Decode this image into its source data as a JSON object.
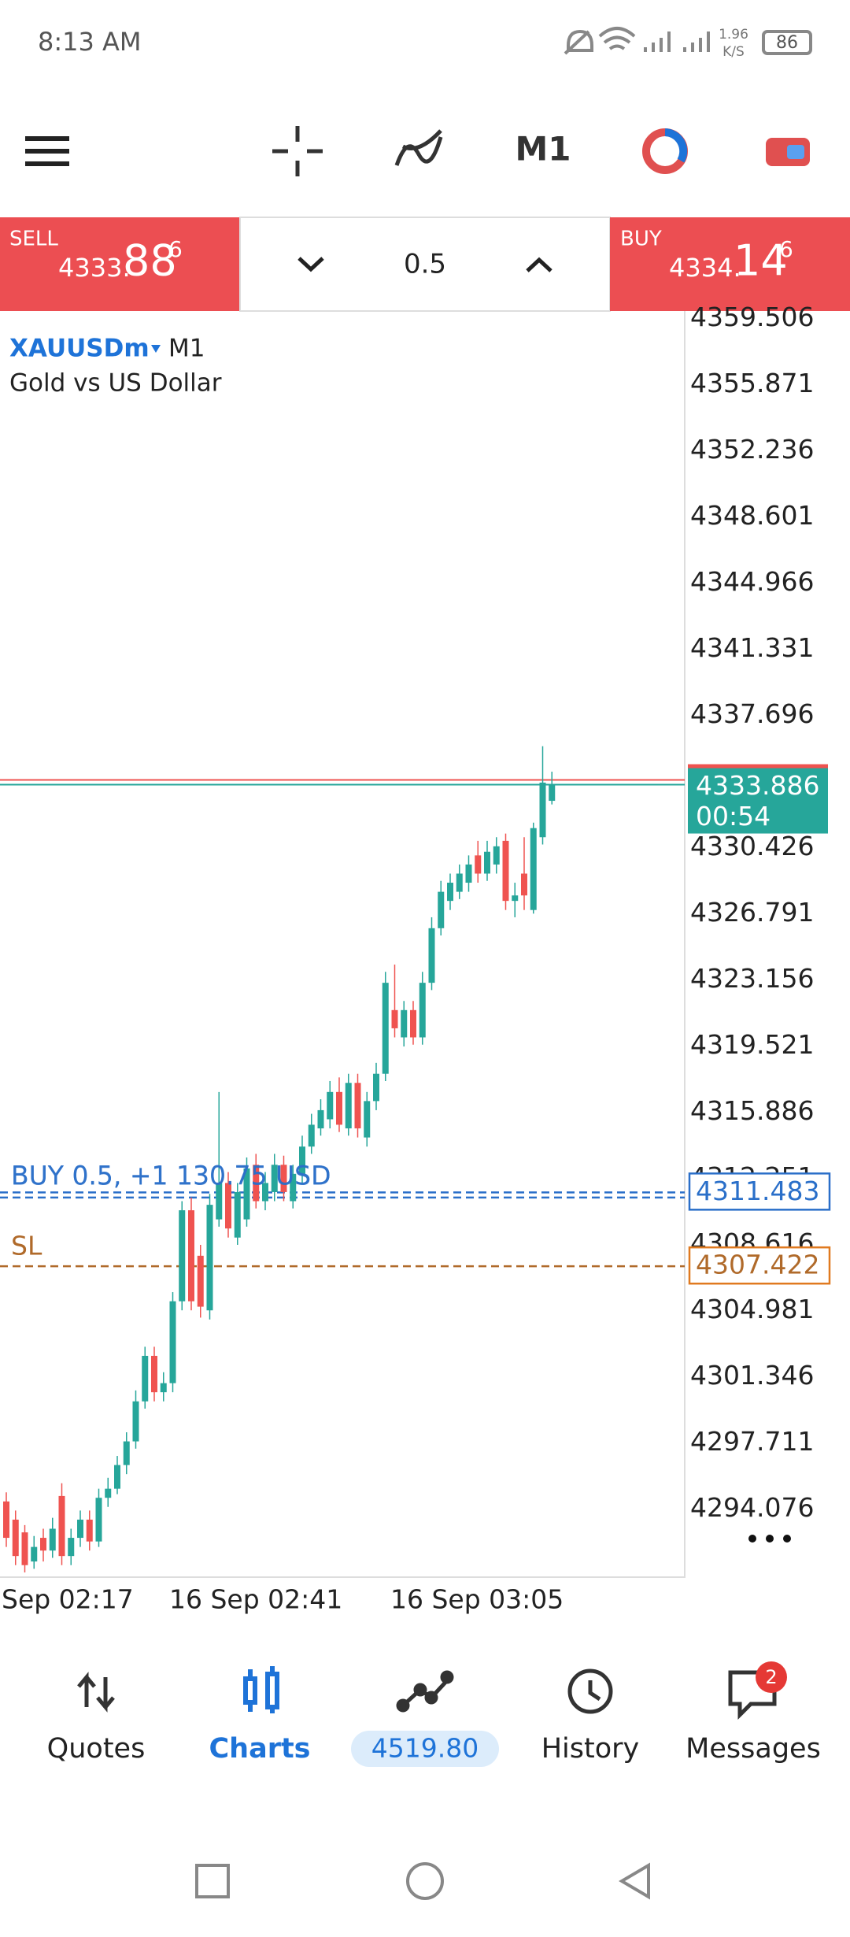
{
  "status_bar": {
    "time": "8:13 AM",
    "net_speed": "1.96",
    "net_unit": "K/S",
    "battery": "86"
  },
  "toolbar": {
    "timeframe": "M1"
  },
  "trade_panel": {
    "sell": {
      "label": "SELL",
      "price_main": "4333.",
      "price_big": "88",
      "price_sup": "6"
    },
    "volume": "0.5",
    "buy": {
      "label": "BUY",
      "price_main": "4334.",
      "price_big": "14",
      "price_sup": "6"
    }
  },
  "chart_data": {
    "type": "candlestick",
    "symbol": "XAUUSDm",
    "timeframe": "M1",
    "description": "Gold vs US Dollar",
    "ylim": [
      4290.339,
      4359.914
    ],
    "yticks": [
      4359.506,
      4355.871,
      4352.236,
      4348.601,
      4344.966,
      4341.331,
      4337.696,
      4330.426,
      4326.791,
      4323.156,
      4319.521,
      4315.886,
      4312.251,
      4308.616,
      4304.981,
      4301.346,
      4297.711,
      4294.076
    ],
    "x_labels": [
      "Sep 02:17",
      "16 Sep 02:41",
      "16 Sep 03:05"
    ],
    "up_color": "#26a69a",
    "down_color": "#ef5350",
    "candles": [
      [
        4294.5,
        4295.0,
        4292.0,
        4292.5
      ],
      [
        4293.5,
        4294.0,
        4291.0,
        4291.5
      ],
      [
        4292.8,
        4293.2,
        4290.6,
        4291.0
      ],
      [
        4291.2,
        4292.6,
        4290.8,
        4292.0
      ],
      [
        4292.5,
        4293.0,
        4291.2,
        4291.8
      ],
      [
        4291.8,
        4293.6,
        4291.4,
        4293.0
      ],
      [
        4294.8,
        4295.5,
        4291.0,
        4291.5
      ],
      [
        4291.5,
        4293.0,
        4291.0,
        4292.5
      ],
      [
        4292.5,
        4294.0,
        4292.0,
        4293.5
      ],
      [
        4293.5,
        4294.0,
        4291.8,
        4292.3
      ],
      [
        4292.3,
        4295.2,
        4292.0,
        4294.7
      ],
      [
        4294.7,
        4295.8,
        4294.2,
        4295.2
      ],
      [
        4295.2,
        4297.0,
        4294.9,
        4296.5
      ],
      [
        4296.5,
        4298.3,
        4296.0,
        4297.8
      ],
      [
        4297.8,
        4300.6,
        4297.4,
        4300.0
      ],
      [
        4300.0,
        4303.0,
        4299.6,
        4302.5
      ],
      [
        4302.5,
        4303.0,
        4300.0,
        4300.5
      ],
      [
        4300.5,
        4301.6,
        4300.0,
        4301.0
      ],
      [
        4301.0,
        4306.0,
        4300.5,
        4305.5
      ],
      [
        4305.5,
        4311.0,
        4305.0,
        4310.5
      ],
      [
        4310.5,
        4311.2,
        4305.0,
        4305.5
      ],
      [
        4308.0,
        4308.6,
        4304.6,
        4305.2
      ],
      [
        4305.0,
        4311.4,
        4304.5,
        4310.8
      ],
      [
        4310.0,
        4317.0,
        4309.6,
        4312.0
      ],
      [
        4312.0,
        4312.6,
        4309.0,
        4309.5
      ],
      [
        4309.0,
        4312.0,
        4308.6,
        4311.5
      ],
      [
        4310.0,
        4313.4,
        4309.6,
        4312.8
      ],
      [
        4313.0,
        4313.6,
        4310.6,
        4311.0
      ],
      [
        4311.0,
        4312.6,
        4310.5,
        4312.0
      ],
      [
        4311.5,
        4313.6,
        4311.0,
        4313.0
      ],
      [
        4313.0,
        4313.5,
        4311.0,
        4311.5
      ],
      [
        4311.0,
        4313.0,
        4310.6,
        4312.5
      ],
      [
        4312.5,
        4314.6,
        4312.0,
        4314.0
      ],
      [
        4314.0,
        4315.8,
        4313.6,
        4315.2
      ],
      [
        4315.0,
        4316.6,
        4314.6,
        4316.0
      ],
      [
        4315.5,
        4317.6,
        4315.0,
        4317.0
      ],
      [
        4317.0,
        4317.8,
        4314.8,
        4315.2
      ],
      [
        4315.0,
        4318.0,
        4314.6,
        4317.5
      ],
      [
        4317.5,
        4318.0,
        4314.5,
        4315.0
      ],
      [
        4314.5,
        4317.0,
        4314.0,
        4316.5
      ],
      [
        4316.5,
        4318.6,
        4316.0,
        4318.0
      ],
      [
        4318.0,
        4323.6,
        4317.6,
        4323.0
      ],
      [
        4321.5,
        4324.0,
        4320.0,
        4320.5
      ],
      [
        4320.0,
        4322.0,
        4319.5,
        4321.5
      ],
      [
        4321.5,
        4322.0,
        4319.6,
        4320.0
      ],
      [
        4320.0,
        4323.6,
        4319.6,
        4323.0
      ],
      [
        4323.0,
        4326.6,
        4322.6,
        4326.0
      ],
      [
        4326.0,
        4328.6,
        4325.6,
        4328.0
      ],
      [
        4327.5,
        4329.0,
        4327.0,
        4328.5
      ],
      [
        4328.0,
        4329.5,
        4327.6,
        4329.0
      ],
      [
        4328.5,
        4330.0,
        4328.0,
        4329.5
      ],
      [
        4330.0,
        4330.8,
        4328.5,
        4329.0
      ],
      [
        4329.0,
        4330.8,
        4328.6,
        4330.2
      ],
      [
        4329.5,
        4331.0,
        4329.0,
        4330.5
      ],
      [
        4330.8,
        4331.2,
        4327.0,
        4327.5
      ],
      [
        4327.5,
        4328.5,
        4326.6,
        4327.8
      ],
      [
        4329.0,
        4331.0,
        4327.0,
        4327.8
      ],
      [
        4327.0,
        4331.8,
        4326.8,
        4331.5
      ],
      [
        4331.0,
        4336.0,
        4330.6,
        4334.0
      ],
      [
        4333.0,
        4334.6,
        4332.8,
        4333.886
      ]
    ],
    "bid": {
      "value": 4333.886,
      "timer": "00:54"
    },
    "ask": 4334.146,
    "orders": [
      {
        "label": "BUY 0.5, +1 130.75 USD",
        "price": 4311.483
      },
      {
        "label": "BUY 0.5, +1 130.75 USD",
        "price": 4311.2
      }
    ],
    "stop_loss": {
      "label": "SL",
      "price": 4307.422
    }
  },
  "bottom_nav": {
    "items": [
      "Quotes",
      "Charts",
      "4519.80",
      "History",
      "Messages"
    ],
    "badge": "2"
  }
}
